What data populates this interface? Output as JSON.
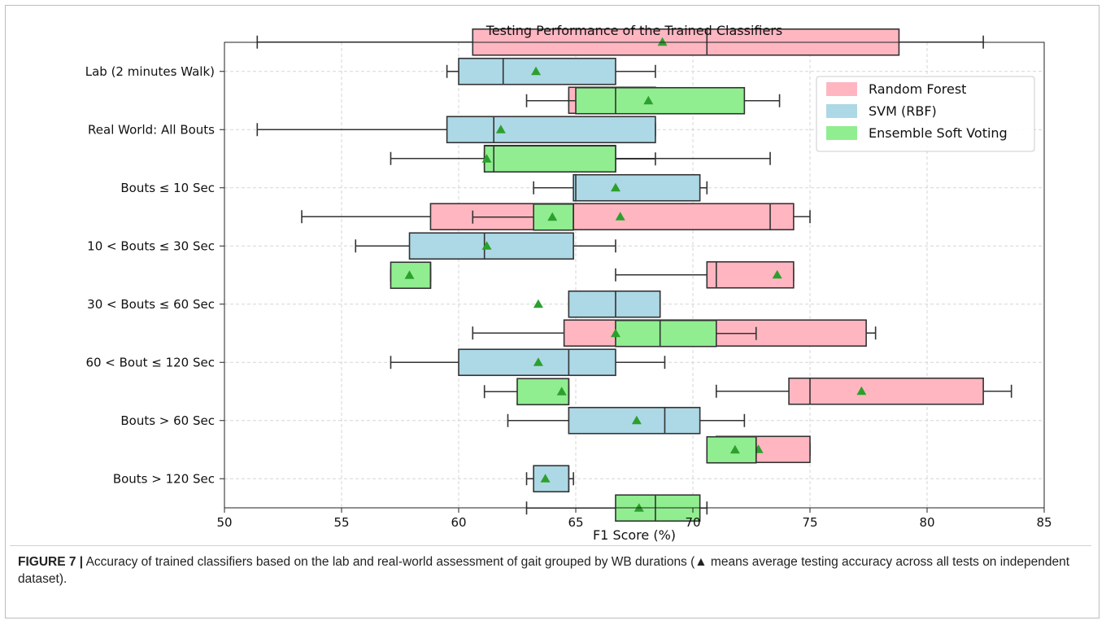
{
  "chart_data": {
    "type": "boxplot",
    "orientation": "horizontal",
    "title": "Testing Performance of the Trained Classifiers",
    "xlabel": "F1 Score (%)",
    "ylabel": "",
    "xlim": [
      50,
      85
    ],
    "xticks": [
      50,
      55,
      60,
      65,
      70,
      75,
      80,
      85
    ],
    "grid": true,
    "legend_position": "top-right",
    "mean_marker": "triangle",
    "categories": [
      "Lab (2 minutes Walk)",
      "Real World: All Bouts",
      "Bouts ≤ 10 Sec",
      "10 < Bouts ≤ 30 Sec",
      "30 < Bouts ≤ 60 Sec",
      "60 < Bout ≤ 120 Sec",
      "Bouts > 60 Sec",
      "Bouts > 120 Sec"
    ],
    "series": [
      {
        "name": "Random Forest",
        "color": "#ffb6c1",
        "boxes": [
          {
            "min": 51.4,
            "q1": 60.6,
            "median": 70.6,
            "q3": 78.8,
            "max": 82.4,
            "mean": 68.7
          },
          {
            "min": 64.7,
            "q1": 64.7,
            "median": 66.7,
            "q3": 68.4,
            "max": 68.4,
            "mean": 65.4
          },
          {
            "min": 57.1,
            "q1": 61.1,
            "median": 63.2,
            "q3": 66.7,
            "max": 73.3,
            "mean": 64.3
          },
          {
            "min": 53.3,
            "q1": 58.8,
            "median": 73.3,
            "q3": 74.3,
            "max": 75.0,
            "mean": 66.9
          },
          {
            "min": 66.7,
            "q1": 70.6,
            "median": 71.0,
            "q3": 74.3,
            "max": 74.3,
            "mean": 73.6
          },
          {
            "min": 60.6,
            "q1": 64.5,
            "median": 69.0,
            "q3": 77.4,
            "max": 77.8,
            "mean": 69.8
          },
          {
            "min": 71.0,
            "q1": 74.1,
            "median": 75.0,
            "q3": 82.4,
            "max": 83.6,
            "mean": 77.2
          },
          {
            "min": 71.0,
            "q1": 71.0,
            "median": 72.2,
            "q3": 75.0,
            "max": 75.0,
            "mean": 72.8
          }
        ]
      },
      {
        "name": "SVM (RBF)",
        "color": "#add8e6",
        "boxes": [
          {
            "min": 59.5,
            "q1": 60.0,
            "median": 61.9,
            "q3": 66.7,
            "max": 68.4,
            "mean": 63.3
          },
          {
            "min": 51.4,
            "q1": 59.5,
            "median": 61.5,
            "q3": 68.4,
            "max": 68.4,
            "mean": 61.8
          },
          {
            "min": 63.2,
            "q1": 64.9,
            "median": 65.0,
            "q3": 70.3,
            "max": 70.6,
            "mean": 66.7
          },
          {
            "min": 55.6,
            "q1": 57.9,
            "median": 61.1,
            "q3": 64.9,
            "max": 66.7,
            "mean": 61.2
          },
          {
            "min": 64.7,
            "q1": 64.7,
            "median": 66.7,
            "q3": 68.6,
            "max": 68.6,
            "mean": 63.4
          },
          {
            "min": 57.1,
            "q1": 60.0,
            "median": 64.7,
            "q3": 66.7,
            "max": 68.8,
            "mean": 63.4
          },
          {
            "min": 62.1,
            "q1": 64.7,
            "median": 68.8,
            "q3": 70.3,
            "max": 72.2,
            "mean": 67.6
          },
          {
            "min": 62.9,
            "q1": 63.2,
            "median": 64.7,
            "q3": 64.7,
            "max": 64.9,
            "mean": 63.7
          }
        ]
      },
      {
        "name": "Ensemble Soft Voting",
        "color": "#90ee90",
        "boxes": [
          {
            "min": 62.9,
            "q1": 65.0,
            "median": 66.7,
            "q3": 72.2,
            "max": 73.7,
            "mean": 68.1
          },
          {
            "min": 61.1,
            "q1": 61.1,
            "median": 61.5,
            "q3": 66.7,
            "max": 68.4,
            "mean": 61.2
          },
          {
            "min": 60.6,
            "q1": 63.2,
            "median": 64.9,
            "q3": 64.9,
            "max": 64.9,
            "mean": 64.0
          },
          {
            "min": 57.1,
            "q1": 57.1,
            "median": 58.8,
            "q3": 58.8,
            "max": 58.8,
            "mean": 57.9
          },
          {
            "min": 66.7,
            "q1": 66.7,
            "median": 68.6,
            "q3": 71.0,
            "max": 72.7,
            "mean": 66.7
          },
          {
            "min": 61.1,
            "q1": 62.5,
            "median": 64.7,
            "q3": 64.7,
            "max": 64.7,
            "mean": 64.4
          },
          {
            "min": 70.6,
            "q1": 70.6,
            "median": 72.7,
            "q3": 72.7,
            "max": 72.7,
            "mean": 71.8
          },
          {
            "min": 62.9,
            "q1": 66.7,
            "median": 68.4,
            "q3": 70.3,
            "max": 70.6,
            "mean": 67.7
          }
        ]
      }
    ],
    "mean_marker_color": "#2ca02c"
  },
  "caption": {
    "figure_label": "FIGURE 7 |",
    "text": " Accuracy of trained classifiers based on the lab and real-world assessment of gait grouped by WB durations (▲ means average testing accuracy across all tests on independent dataset)."
  }
}
